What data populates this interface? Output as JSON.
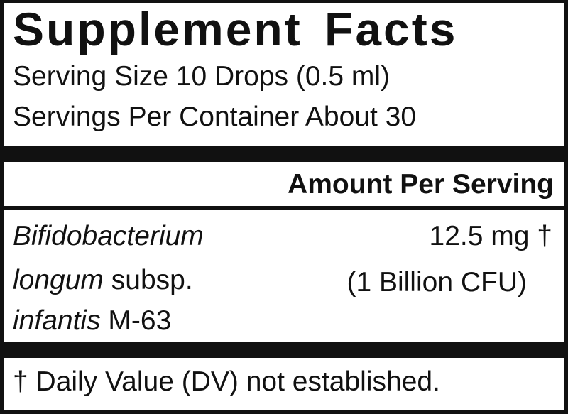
{
  "title": "Supplement Facts",
  "serving_size": "Serving Size 10 Drops (0.5 ml)",
  "servings_per_container": "Servings Per Container About 30",
  "amount_header": "Amount Per Serving",
  "ingredient": {
    "line1_italic": "Bifidobacterium",
    "line2_italic": "longum",
    "line2_rest": " subsp.",
    "line3_italic": "infantis",
    "line3_rest": " M-63",
    "amount": "12.5 mg †",
    "cfu": "(1 Billion CFU)"
  },
  "footnote": "† Daily Value (DV) not established."
}
